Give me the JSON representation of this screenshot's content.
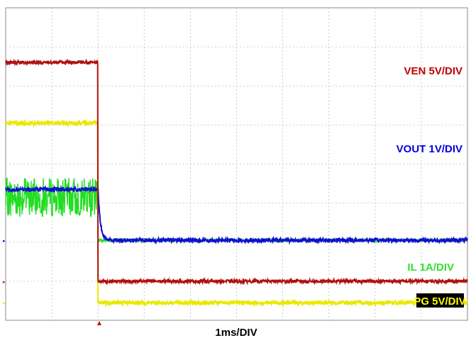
{
  "chart_data": {
    "type": "line",
    "title": "",
    "xlabel": "1ms/DIV",
    "grid": true,
    "grid_divisions": {
      "x": 10,
      "y": 8
    },
    "trigger_time_div": 2,
    "series": [
      {
        "name": "VEN 5V/DIV",
        "color": "#b01010",
        "ground_div": 1.0,
        "scale": "5V/DIV",
        "x": [
          0,
          2.0,
          2.01,
          10
        ],
        "y": [
          5.6,
          5.6,
          0,
          0
        ],
        "noise_div": 0.04
      },
      {
        "name": "VOUT 1V/DIV",
        "color": "#1010d0",
        "ground_div": 2.05,
        "scale": "1V/DIV",
        "decay": {
          "start": 2.0,
          "tau": 0.05
        },
        "x": [
          0,
          2.0,
          2.1,
          10
        ],
        "y": [
          1.3,
          1.3,
          0.05,
          0
        ],
        "noise_div": 0.05
      },
      {
        "name": "IL 1A/DIV",
        "color": "#22dd22",
        "ground_div": 2.05,
        "scale": "1A/DIV",
        "x": [
          0,
          2.0,
          2.01,
          10
        ],
        "y": [
          1.1,
          1.1,
          0,
          0
        ],
        "ripple_div": 0.5,
        "noise_div": 0.04
      },
      {
        "name": "PG 5V/DIV",
        "color": "#e8e800",
        "ground_div": 0.45,
        "scale": "5V/DIV",
        "x": [
          0,
          2.0,
          2.01,
          10
        ],
        "y": [
          4.6,
          4.6,
          0,
          0
        ],
        "noise_div": 0.05
      }
    ]
  },
  "labels": {
    "ven": "VEN 5V/DIV",
    "vout": "VOUT 1V/DIV",
    "il": "IL 1A/DIV",
    "pg": "PG 5V/DIV",
    "time": "1ms/DIV"
  }
}
